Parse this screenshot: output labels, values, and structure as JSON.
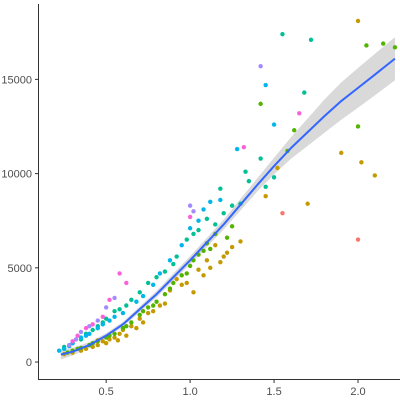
{
  "chart_data": {
    "type": "scatter",
    "title": "",
    "xlabel": "",
    "ylabel": "",
    "xlim": [
      0.1,
      2.25
    ],
    "ylim": [
      -900,
      19000
    ],
    "xticks": [
      0.5,
      1.0,
      1.5,
      2.0
    ],
    "xtick_labels": [
      "0.5",
      "1.0",
      "1.5",
      "2.0"
    ],
    "yticks": [
      0,
      5000,
      10000,
      15000
    ],
    "ytick_labels": [
      "0",
      "5000",
      "10000",
      "15000"
    ],
    "grid": false,
    "legend": "none",
    "smooth_line": {
      "color": "#3366ff",
      "band_color": "#bfbfbf",
      "x": [
        0.23,
        0.3,
        0.4,
        0.5,
        0.6,
        0.7,
        0.8,
        0.9,
        1.0,
        1.1,
        1.2,
        1.3,
        1.4,
        1.5,
        1.6,
        1.7,
        1.8,
        1.9,
        2.0,
        2.1,
        2.22
      ],
      "y": [
        400,
        550,
        900,
        1400,
        2000,
        2800,
        3600,
        4500,
        5400,
        6350,
        7300,
        8350,
        9400,
        10400,
        11350,
        12200,
        13050,
        13850,
        14550,
        15250,
        16100
      ],
      "band": [
        120,
        90,
        70,
        60,
        60,
        70,
        80,
        90,
        100,
        110,
        120,
        140,
        160,
        200,
        260,
        330,
        400,
        450,
        480,
        500,
        520
      ]
    },
    "series": [
      {
        "color": "#f8766d",
        "points": [
          [
            2.0,
            6500
          ],
          [
            1.55,
            7900
          ]
        ]
      },
      {
        "color": "#c49a00",
        "points": [
          [
            2.0,
            18100
          ],
          [
            2.02,
            10600
          ],
          [
            2.1,
            9900
          ],
          [
            1.9,
            11100
          ],
          [
            1.7,
            8400
          ],
          [
            1.45,
            8800
          ],
          [
            1.52,
            10300
          ],
          [
            1.15,
            6200
          ],
          [
            1.22,
            5800
          ],
          [
            1.05,
            4900
          ],
          [
            1.1,
            5400
          ],
          [
            0.98,
            4200
          ],
          [
            1.02,
            3700
          ],
          [
            1.12,
            5000
          ],
          [
            0.85,
            3100
          ],
          [
            0.88,
            3800
          ],
          [
            0.92,
            4400
          ],
          [
            0.78,
            2700
          ],
          [
            0.65,
            1900
          ],
          [
            0.7,
            2300
          ],
          [
            0.55,
            1300
          ],
          [
            0.6,
            1700
          ],
          [
            0.48,
            1100
          ],
          [
            0.45,
            900
          ],
          [
            0.42,
            800
          ],
          [
            0.35,
            600
          ],
          [
            0.3,
            500
          ],
          [
            0.25,
            420
          ],
          [
            0.52,
            1200
          ],
          [
            0.58,
            1500
          ],
          [
            0.75,
            2600
          ],
          [
            0.82,
            3000
          ],
          [
            1.18,
            5300
          ],
          [
            1.25,
            6100
          ],
          [
            1.3,
            6400
          ],
          [
            0.62,
            1400
          ],
          [
            0.5,
            1000
          ],
          [
            0.38,
            700
          ],
          [
            0.95,
            4100
          ],
          [
            1.08,
            4600
          ],
          [
            1.2,
            5600
          ],
          [
            0.72,
            2100
          ],
          [
            0.68,
            1800
          ],
          [
            0.57,
            1150
          ],
          [
            0.45,
            1150
          ]
        ]
      },
      {
        "color": "#53b400",
        "points": [
          [
            2.05,
            16800
          ],
          [
            2.15,
            16900
          ],
          [
            2.22,
            16700
          ],
          [
            2.0,
            12500
          ],
          [
            1.58,
            11200
          ],
          [
            1.42,
            13700
          ],
          [
            1.62,
            12300
          ],
          [
            1.25,
            7200
          ],
          [
            1.15,
            6800
          ],
          [
            1.1,
            6300
          ],
          [
            1.05,
            5700
          ],
          [
            1.0,
            5100
          ],
          [
            0.95,
            4600
          ],
          [
            0.9,
            4200
          ],
          [
            0.85,
            3600
          ],
          [
            0.8,
            3200
          ],
          [
            0.75,
            2900
          ],
          [
            0.7,
            2500
          ],
          [
            0.65,
            2100
          ],
          [
            0.6,
            1800
          ],
          [
            0.55,
            1500
          ],
          [
            0.5,
            1300
          ],
          [
            0.45,
            1100
          ],
          [
            0.4,
            900
          ],
          [
            0.35,
            750
          ],
          [
            0.3,
            600
          ],
          [
            0.27,
            500
          ],
          [
            1.12,
            6000
          ],
          [
            0.98,
            4700
          ],
          [
            0.88,
            3900
          ],
          [
            0.78,
            3000
          ],
          [
            1.02,
            5400
          ],
          [
            1.08,
            5900
          ],
          [
            1.22,
            6600
          ],
          [
            0.72,
            2700
          ],
          [
            0.62,
            1900
          ],
          [
            0.52,
            1400
          ],
          [
            0.42,
            1000
          ],
          [
            0.33,
            700
          ]
        ]
      },
      {
        "color": "#00c094",
        "points": [
          [
            1.55,
            17400
          ],
          [
            1.72,
            17100
          ],
          [
            1.68,
            14300
          ],
          [
            1.42,
            10800
          ],
          [
            1.5,
            9800
          ],
          [
            1.35,
            9600
          ],
          [
            1.3,
            8400
          ],
          [
            1.2,
            7900
          ],
          [
            1.25,
            8300
          ],
          [
            1.1,
            7600
          ],
          [
            1.05,
            7000
          ],
          [
            0.98,
            6500
          ],
          [
            0.9,
            5200
          ],
          [
            0.85,
            4800
          ],
          [
            0.8,
            4500
          ],
          [
            0.7,
            3700
          ],
          [
            0.62,
            3000
          ],
          [
            0.55,
            2700
          ],
          [
            0.5,
            2300
          ],
          [
            0.48,
            2100
          ],
          [
            0.42,
            1700
          ],
          [
            0.38,
            1500
          ],
          [
            0.35,
            1200
          ],
          [
            0.3,
            1000
          ],
          [
            0.25,
            800
          ],
          [
            1.15,
            7300
          ],
          [
            1.02,
            6800
          ],
          [
            0.92,
            5600
          ],
          [
            0.75,
            4200
          ],
          [
            0.65,
            3300
          ],
          [
            0.58,
            2800
          ],
          [
            0.45,
            1900
          ],
          [
            1.18,
            9200
          ],
          [
            1.33,
            10100
          ],
          [
            1.45,
            9300
          ]
        ]
      },
      {
        "color": "#00b6eb",
        "points": [
          [
            1.45,
            14700
          ],
          [
            1.5,
            12600
          ],
          [
            1.28,
            11300
          ],
          [
            1.18,
            8600
          ],
          [
            1.08,
            8100
          ],
          [
            1.12,
            8500
          ],
          [
            0.95,
            6200
          ],
          [
            0.88,
            5400
          ],
          [
            0.78,
            4100
          ],
          [
            0.72,
            3500
          ],
          [
            0.68,
            3200
          ],
          [
            0.6,
            2600
          ],
          [
            0.52,
            2200
          ],
          [
            0.45,
            1800
          ],
          [
            0.4,
            1500
          ],
          [
            0.35,
            1300
          ],
          [
            0.3,
            1000
          ],
          [
            0.28,
            850
          ],
          [
            0.25,
            700
          ],
          [
            0.22,
            600
          ],
          [
            1.0,
            7100
          ],
          [
            1.05,
            7500
          ],
          [
            0.82,
            4700
          ],
          [
            0.55,
            2400
          ],
          [
            0.48,
            2000
          ],
          [
            0.38,
            1400
          ]
        ]
      },
      {
        "color": "#a58aff",
        "points": [
          [
            1.42,
            15700
          ],
          [
            1.0,
            8300
          ],
          [
            0.55,
            3400
          ],
          [
            0.5,
            2900
          ],
          [
            0.45,
            2200
          ],
          [
            0.4,
            1900
          ],
          [
            0.35,
            1600
          ],
          [
            0.32,
            1200
          ],
          [
            0.28,
            900
          ],
          [
            1.02,
            8000
          ]
        ]
      },
      {
        "color": "#fb61d7",
        "points": [
          [
            1.65,
            13200
          ],
          [
            1.32,
            11400
          ],
          [
            1.0,
            7700
          ],
          [
            0.58,
            4700
          ],
          [
            0.52,
            3300
          ],
          [
            0.48,
            2400
          ],
          [
            0.42,
            2000
          ],
          [
            0.38,
            1800
          ],
          [
            0.33,
            1400
          ],
          [
            0.3,
            1100
          ],
          [
            0.62,
            4200
          ]
        ]
      }
    ]
  }
}
